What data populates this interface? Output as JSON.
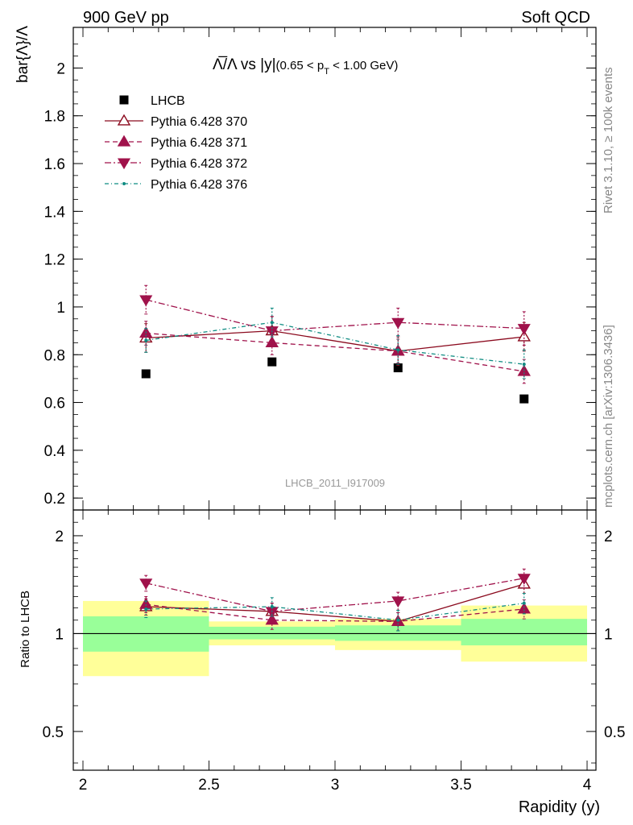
{
  "header": {
    "left": "900 GeV pp",
    "right": "Soft QCD"
  },
  "side_labels": {
    "rivet": "Rivet 3.1.10, ≥ 100k events",
    "mcplots": "mcplots.cern.ch [arXiv:1306.3436]"
  },
  "watermark": "LHCB_2011_I917009",
  "plot_title": {
    "main": "Λ̅/Λ vs |y|",
    "cut_open": "(0.65 < p",
    "cut_sub": "T",
    "cut_close": " < 1.00 GeV)"
  },
  "colors": {
    "lhcb": "#000000",
    "p370": "#8b0a1e",
    "p371": "#a0124b",
    "p372": "#a0124b",
    "p376": "#0f8c82",
    "band_inner": "#99ff99",
    "band_outer": "#ffff99"
  },
  "chart_data": [
    {
      "type": "scatter",
      "title": "Λ̅/Λ vs |y| (0.65 < pT < 1.00 GeV)",
      "xlabel": "",
      "ylabel": "bar{Λ}/Λ",
      "xlim": [
        2,
        4
      ],
      "ylim": [
        0.15,
        2.17
      ],
      "yticks": [
        "0.2",
        "0.4",
        "0.6",
        "0.8",
        "1",
        "1.2",
        "1.4",
        "1.6",
        "1.8",
        "2"
      ],
      "legend_position": "top-left",
      "series": [
        {
          "name": "LHCB",
          "style": "data",
          "x": [
            2.25,
            2.75,
            3.25,
            3.75
          ],
          "y": [
            0.72,
            0.77,
            0.745,
            0.615
          ],
          "err": [
            0,
            0,
            0,
            0
          ]
        },
        {
          "name": "Pythia 6.428 370",
          "style": "solid",
          "marker": "triangle-up-open",
          "x": [
            2.25,
            2.75,
            3.25,
            3.75
          ],
          "y": [
            0.87,
            0.9,
            0.815,
            0.875
          ],
          "err": [
            0.06,
            0.06,
            0.06,
            0.06
          ]
        },
        {
          "name": "Pythia 6.428 371",
          "style": "dashed",
          "marker": "triangle-up",
          "x": [
            2.25,
            2.75,
            3.25,
            3.75
          ],
          "y": [
            0.89,
            0.85,
            0.815,
            0.73
          ],
          "err": [
            0.05,
            0.05,
            0.05,
            0.05
          ]
        },
        {
          "name": "Pythia 6.428 372",
          "style": "dashdot",
          "marker": "triangle-down",
          "x": [
            2.25,
            2.75,
            3.25,
            3.75
          ],
          "y": [
            1.03,
            0.9,
            0.935,
            0.91
          ],
          "err": [
            0.06,
            0.06,
            0.06,
            0.07
          ]
        },
        {
          "name": "Pythia 6.428 376",
          "style": "dashdot-fine",
          "marker": "dot",
          "x": [
            2.25,
            2.75,
            3.25,
            3.75
          ],
          "y": [
            0.86,
            0.935,
            0.82,
            0.76
          ],
          "err": [
            0.05,
            0.06,
            0.06,
            0.06
          ]
        }
      ]
    },
    {
      "type": "scatter",
      "title": "",
      "xlabel": "Rapidity (y)",
      "ylabel": "Ratio to LHCB",
      "xlim": [
        2,
        4
      ],
      "ylim": [
        0.38,
        2.4
      ],
      "y_scale": "log",
      "xticks": [
        "2",
        "2.5",
        "3",
        "3.5",
        "4"
      ],
      "yticks": [
        "0.5",
        "1",
        "2"
      ],
      "reference_line": 1,
      "bands": [
        {
          "x0": 2.0,
          "x1": 2.5,
          "inner": [
            0.88,
            1.13
          ],
          "outer": [
            0.74,
            1.26
          ]
        },
        {
          "x0": 2.5,
          "x1": 3.0,
          "inner": [
            0.96,
            1.05
          ],
          "outer": [
            0.92,
            1.09
          ]
        },
        {
          "x0": 3.0,
          "x1": 3.5,
          "inner": [
            0.95,
            1.06
          ],
          "outer": [
            0.89,
            1.11
          ]
        },
        {
          "x0": 3.5,
          "x1": 4.0,
          "inner": [
            0.92,
            1.11
          ],
          "outer": [
            0.82,
            1.22
          ]
        }
      ],
      "series": [
        {
          "name": "Pythia 6.428 370",
          "style": "solid",
          "marker": "triangle-up-open",
          "x": [
            2.25,
            2.75,
            3.25,
            3.75
          ],
          "y": [
            1.21,
            1.17,
            1.09,
            1.42
          ],
          "err": [
            0.07,
            0.07,
            0.07,
            0.09
          ]
        },
        {
          "name": "Pythia 6.428 371",
          "style": "dashed",
          "marker": "triangle-up",
          "x": [
            2.25,
            2.75,
            3.25,
            3.75
          ],
          "y": [
            1.23,
            1.1,
            1.09,
            1.19
          ],
          "err": [
            0.07,
            0.07,
            0.07,
            0.08
          ]
        },
        {
          "name": "Pythia 6.428 372",
          "style": "dashdot",
          "marker": "triangle-down",
          "x": [
            2.25,
            2.75,
            3.25,
            3.75
          ],
          "y": [
            1.43,
            1.17,
            1.26,
            1.48
          ],
          "err": [
            0.08,
            0.07,
            0.08,
            0.1
          ]
        },
        {
          "name": "Pythia 6.428 376",
          "style": "dashdot-fine",
          "marker": "dot",
          "x": [
            2.25,
            2.75,
            3.25,
            3.75
          ],
          "y": [
            1.19,
            1.21,
            1.1,
            1.24
          ],
          "err": [
            0.07,
            0.08,
            0.08,
            0.09
          ]
        }
      ]
    }
  ]
}
